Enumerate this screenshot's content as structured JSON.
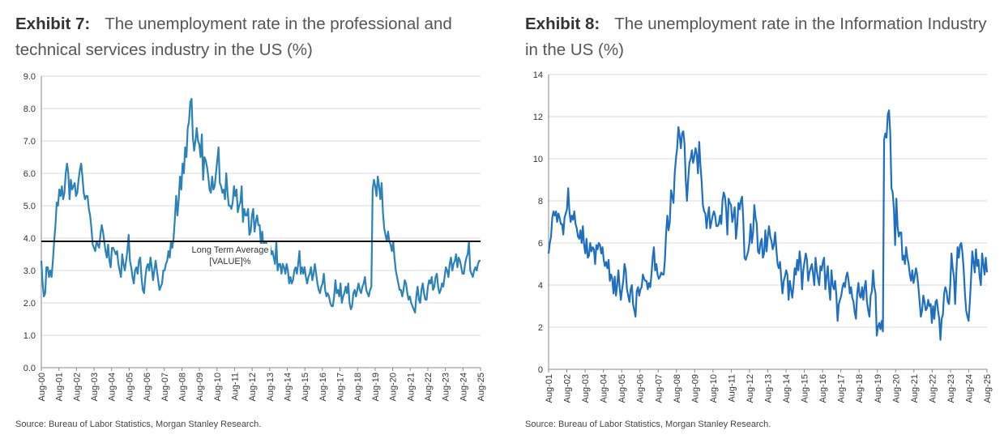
{
  "exhibits": [
    {
      "number": "Exhibit 7:",
      "title": "The unemployment rate in the professional and technical services industry in the US (%)",
      "source": "Source: Bureau of Labor Statistics, Morgan Stanley Research."
    },
    {
      "number": "Exhibit 8:",
      "title": "The unemployment rate in the Information Industry in the US (%)",
      "source": "Source: Bureau of Labor Statistics, Morgan Stanley Research."
    }
  ],
  "colors": {
    "line": "#2a82b8",
    "line2": "#1f6fc0",
    "average": "#111111",
    "grid": "#d9d9d9",
    "axis": "#888888"
  },
  "chart_data": [
    {
      "type": "line",
      "x_start": "Aug-00",
      "x_end": "Aug-25",
      "x_ticks": [
        "Aug-00",
        "Aug-01",
        "Aug-02",
        "Aug-03",
        "Aug-04",
        "Aug-05",
        "Aug-06",
        "Aug-07",
        "Aug-08",
        "Aug-09",
        "Aug-10",
        "Aug-11",
        "Aug-12",
        "Aug-13",
        "Aug-14",
        "Aug-15",
        "Aug-16",
        "Aug-17",
        "Aug-18",
        "Aug-19",
        "Aug-20",
        "Aug-21",
        "Aug-22",
        "Aug-23",
        "Aug-24",
        "Aug-25"
      ],
      "y_ticks": [
        "0.0",
        "1.0",
        "2.0",
        "3.0",
        "4.0",
        "5.0",
        "6.0",
        "7.0",
        "8.0",
        "9.0"
      ],
      "ylim": [
        0,
        9
      ],
      "grid": true,
      "series": [
        {
          "values": [
            3.3,
            2.6,
            2.2,
            2.3,
            3.1,
            3.1,
            2.8,
            3.0,
            2.8,
            3.3,
            3.9,
            4.4,
            5.1,
            5.0,
            5.5,
            5.3,
            5.6,
            5.2,
            5.4,
            6.0,
            6.3,
            6.0,
            5.2,
            5.8,
            5.5,
            5.6,
            5.7,
            5.3,
            5.4,
            5.8,
            6.1,
            6.3,
            5.9,
            5.4,
            5.2,
            5.3,
            5.3,
            4.9,
            4.7,
            4.3,
            3.8,
            3.7,
            3.6,
            3.9,
            3.8,
            3.7,
            4.1,
            4.4,
            4.2,
            3.9,
            3.6,
            3.4,
            3.8,
            3.3,
            3.1,
            3.7,
            3.7,
            3.6,
            3.5,
            3.6,
            3.2,
            3.0,
            2.8,
            3.5,
            3.2,
            3.0,
            3.3,
            3.6,
            4.1,
            3.3,
            3.1,
            2.8,
            2.6,
            3.0,
            3.1,
            2.9,
            3.3,
            3.4,
            2.8,
            2.4,
            2.3,
            2.8,
            3.1,
            3.2,
            3.0,
            3.4,
            3.1,
            2.7,
            3.0,
            3.3,
            3.0,
            2.7,
            2.4,
            2.5,
            2.6,
            3.0,
            3.0,
            3.2,
            3.3,
            3.6,
            3.4,
            3.9,
            3.7,
            4.0,
            4.6,
            5.3,
            4.7,
            5.2,
            5.9,
            5.5,
            6.3,
            6.0,
            6.8,
            6.5,
            7.4,
            7.6,
            8.2,
            8.3,
            7.1,
            6.7,
            7.0,
            7.4,
            7.0,
            6.9,
            6.5,
            7.2,
            5.8,
            6.5,
            6.4,
            6.2,
            5.9,
            5.5,
            5.4,
            5.9,
            5.5,
            5.6,
            6.0,
            6.4,
            6.8,
            5.7,
            5.6,
            5.4,
            5.5,
            5.2,
            6.0,
            5.4,
            5.0,
            5.0,
            4.9,
            5.1,
            5.6,
            5.3,
            5.5,
            4.8,
            5.0,
            5.1,
            5.6,
            4.5,
            4.9,
            4.7,
            4.7,
            4.9,
            4.1,
            4.2,
            4.7,
            4.9,
            4.2,
            4.5,
            4.7,
            4.4,
            4.4,
            3.8,
            4.2,
            3.7,
            3.9,
            3.9,
            3.7,
            3.8,
            3.8,
            3.5,
            3.6,
            3.4,
            3.2,
            3.9,
            3.0,
            3.2,
            3.2,
            2.9,
            3.2,
            3.1,
            2.9,
            3.2,
            3.0,
            2.6,
            2.8,
            2.6,
            2.7,
            3.0,
            3.1,
            2.9,
            3.2,
            3.6,
            2.9,
            3.1,
            2.9,
            3.1,
            2.8,
            2.6,
            2.8,
            2.9,
            3.1,
            2.7,
            2.9,
            3.2,
            2.9,
            2.6,
            2.4,
            2.3,
            2.5,
            2.6,
            2.9,
            2.4,
            2.2,
            2.3,
            2.2,
            2.0,
            1.9,
            1.9,
            2.2,
            2.7,
            2.3,
            2.4,
            2.2,
            2.6,
            2.0,
            2.2,
            2.3,
            2.5,
            2.3,
            2.6,
            2.0,
            1.8,
            1.9,
            2.3,
            2.4,
            2.2,
            2.4,
            2.6,
            2.4,
            2.3,
            2.5,
            2.6,
            2.8,
            2.4,
            2.3,
            2.2,
            2.4,
            2.5,
            5.5,
            5.8,
            5.6,
            5.3,
            5.9,
            5.6,
            5.2,
            5.7,
            4.8,
            4.3,
            4.1,
            3.9,
            4.2,
            3.9,
            3.8,
            3.6,
            3.9,
            3.4,
            3.0,
            2.8,
            2.6,
            2.4,
            2.4,
            2.2,
            2.4,
            2.7,
            2.6,
            2.3,
            2.1,
            2.2,
            2.0,
            1.9,
            1.8,
            1.7,
            2.2,
            2.5,
            2.1,
            2.0,
            2.4,
            2.6,
            2.3,
            2.1,
            2.1,
            2.5,
            2.7,
            2.6,
            2.8,
            2.4,
            2.5,
            2.8,
            2.9,
            2.5,
            2.3,
            2.4,
            2.6,
            2.5,
            2.8,
            3.1,
            3.0,
            2.8,
            3.2,
            3.4,
            3.0,
            3.2,
            3.3,
            3.5,
            3.1,
            3.4,
            3.3,
            3.1,
            2.9,
            2.9,
            3.2,
            3.4,
            3.5,
            3.9,
            3.0,
            2.9,
            2.8,
            3.0,
            3.1,
            3.0,
            3.2,
            3.3,
            3.3
          ]
        }
      ],
      "reference_line": {
        "value": 3.9,
        "label_line1": "Long Term Average",
        "label_line2": "[VALUE]%"
      }
    },
    {
      "type": "line",
      "x_start": "Aug-01",
      "x_end": "Aug-25",
      "x_ticks": [
        "Aug-01",
        "Aug-02",
        "Aug-03",
        "Aug-04",
        "Aug-05",
        "Aug-06",
        "Aug-07",
        "Aug-08",
        "Aug-09",
        "Aug-10",
        "Aug-11",
        "Aug-12",
        "Aug-13",
        "Aug-14",
        "Aug-15",
        "Aug-16",
        "Aug-17",
        "Aug-18",
        "Aug-19",
        "Aug-20",
        "Aug-21",
        "Aug-22",
        "Aug-23",
        "Aug-24",
        "Aug-25"
      ],
      "y_ticks": [
        "0",
        "2",
        "4",
        "6",
        "8",
        "10",
        "12",
        "14"
      ],
      "ylim": [
        0,
        14
      ],
      "grid": true,
      "series": [
        {
          "values": [
            5.5,
            6.0,
            6.3,
            7.2,
            7.5,
            7.3,
            7.5,
            7.0,
            7.4,
            7.2,
            6.9,
            6.9,
            6.4,
            7.2,
            7.4,
            7.6,
            8.6,
            7.5,
            7.0,
            7.3,
            7.1,
            7.5,
            6.9,
            6.7,
            6.3,
            6.2,
            6.6,
            6.0,
            6.8,
            5.9,
            5.5,
            6.2,
            5.3,
            5.4,
            6.0,
            5.6,
            5.8,
            5.7,
            5.0,
            5.9,
            5.7,
            6.0,
            5.9,
            5.5,
            5.8,
            5.2,
            4.9,
            5.1,
            4.8,
            5.2,
            4.2,
            4.5,
            4.3,
            3.6,
            4.4,
            3.5,
            4.0,
            4.7,
            3.9,
            3.3,
            3.8,
            4.2,
            5.0,
            4.7,
            3.8,
            3.5,
            3.2,
            3.8,
            4.0,
            3.1,
            2.8,
            2.5,
            3.7,
            3.9,
            3.5,
            3.8,
            3.9,
            4.5,
            4.3,
            4.2,
            4.2,
            3.8,
            4.1,
            3.9,
            4.5,
            5.3,
            5.8,
            4.7,
            5.0,
            4.5,
            4.3,
            4.4,
            4.6,
            4.5,
            4.5,
            5.2,
            6.5,
            7.3,
            6.6,
            7.0,
            8.5,
            8.2,
            7.9,
            9.3,
            10.0,
            10.5,
            11.5,
            11.1,
            10.5,
            11.2,
            11.3,
            10.7,
            9.0,
            8.0,
            9.0,
            9.8,
            10.0,
            10.4,
            9.8,
            10.1,
            10.5,
            10.2,
            9.3,
            10.8,
            9.7,
            8.9,
            7.8,
            7.5,
            7.4,
            6.7,
            7.3,
            7.7,
            6.7,
            7.0,
            7.3,
            7.5,
            7.3,
            6.8,
            6.8,
            6.9,
            7.3,
            6.9,
            8.0,
            8.4,
            8.2,
            7.6,
            6.4,
            8.1,
            7.9,
            7.8,
            7.0,
            7.3,
            7.7,
            6.2,
            6.8,
            7.9,
            7.6,
            8.0,
            8.2,
            7.1,
            5.3,
            5.2,
            5.4,
            5.6,
            6.0,
            6.9,
            6.0,
            6.5,
            7.8,
            7.2,
            6.9,
            5.6,
            5.5,
            6.0,
            6.2,
            5.3,
            5.5,
            6.6,
            5.6,
            6.3,
            6.8,
            6.3,
            6.1,
            5.7,
            5.9,
            6.5,
            5.7,
            5.0,
            4.8,
            5.1,
            4.3,
            3.6,
            4.2,
            4.4,
            4.7,
            4.5,
            3.3,
            4.2,
            3.8,
            3.4,
            4.0,
            4.8,
            4.5,
            5.2,
            4.7,
            5.6,
            5.0,
            3.8,
            4.7,
            5.1,
            5.5,
            5.2,
            4.2,
            4.6,
            4.8,
            5.0,
            4.5,
            4.0,
            5.3,
            4.7,
            4.3,
            4.0,
            4.9,
            4.7,
            5.1,
            5.3,
            3.8,
            4.4,
            4.9,
            3.9,
            3.3,
            4.7,
            4.0,
            3.8,
            4.2,
            3.5,
            2.3,
            3.1,
            3.3,
            3.5,
            3.9,
            4.1,
            3.9,
            4.4,
            4.6,
            4.2,
            3.6,
            3.9,
            3.4,
            3.2,
            2.7,
            2.4,
            3.6,
            4.1,
            3.5,
            3.4,
            3.9,
            3.3,
            3.9,
            4.2,
            3.2,
            2.8,
            2.5,
            3.5,
            3.7,
            4.7,
            3.9,
            3.6,
            1.6,
            2.0,
            2.2,
            1.9,
            2.3,
            1.8,
            10.9,
            11.2,
            11.0,
            12.1,
            12.3,
            11.2,
            8.6,
            8.4,
            7.6,
            5.9,
            8.1,
            6.8,
            6.3,
            6.5,
            6.5,
            5.2,
            5.4,
            5.0,
            5.8,
            5.3,
            5.0,
            4.5,
            4.2,
            4.7,
            4.1,
            4.4,
            4.8,
            4.5,
            3.9,
            3.2,
            2.5,
            2.8,
            3.5,
            3.2,
            2.8,
            2.9,
            3.3,
            3.0,
            3.1,
            2.2,
            3.0,
            2.4,
            3.2,
            3.3,
            2.8,
            2.4,
            1.4,
            2.4,
            2.6,
            3.6,
            3.9,
            3.7,
            3.2,
            3.1,
            4.0,
            5.5,
            4.8,
            4.4,
            3.1,
            4.6,
            5.8,
            5.3,
            5.9,
            6.0,
            5.5,
            4.7,
            3.6,
            2.8,
            2.5,
            2.3,
            3.2,
            4.3,
            5.6,
            5.1,
            4.6,
            5.7,
            4.9,
            5.2,
            4.4,
            4.0,
            5.5,
            5.0,
            4.5,
            5.3,
            4.6
          ]
        }
      ]
    }
  ]
}
